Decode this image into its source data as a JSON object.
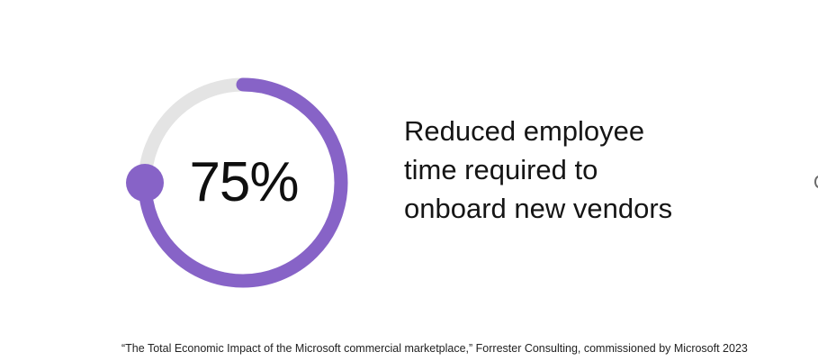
{
  "chart_data": {
    "type": "pie",
    "value": 75,
    "unit": "%",
    "value_label": "75%",
    "max": 100,
    "style": "donut-progress",
    "colors": {
      "progress": "#8763c7",
      "track": "#e4e4e4"
    }
  },
  "description": {
    "lines": [
      "Reduced employee",
      "time required to",
      "onboard new vendors"
    ]
  },
  "source": "“The Total Economic Impact of the Microsoft commercial marketplace,” Forrester Consulting, commissioned by Microsoft 2023"
}
